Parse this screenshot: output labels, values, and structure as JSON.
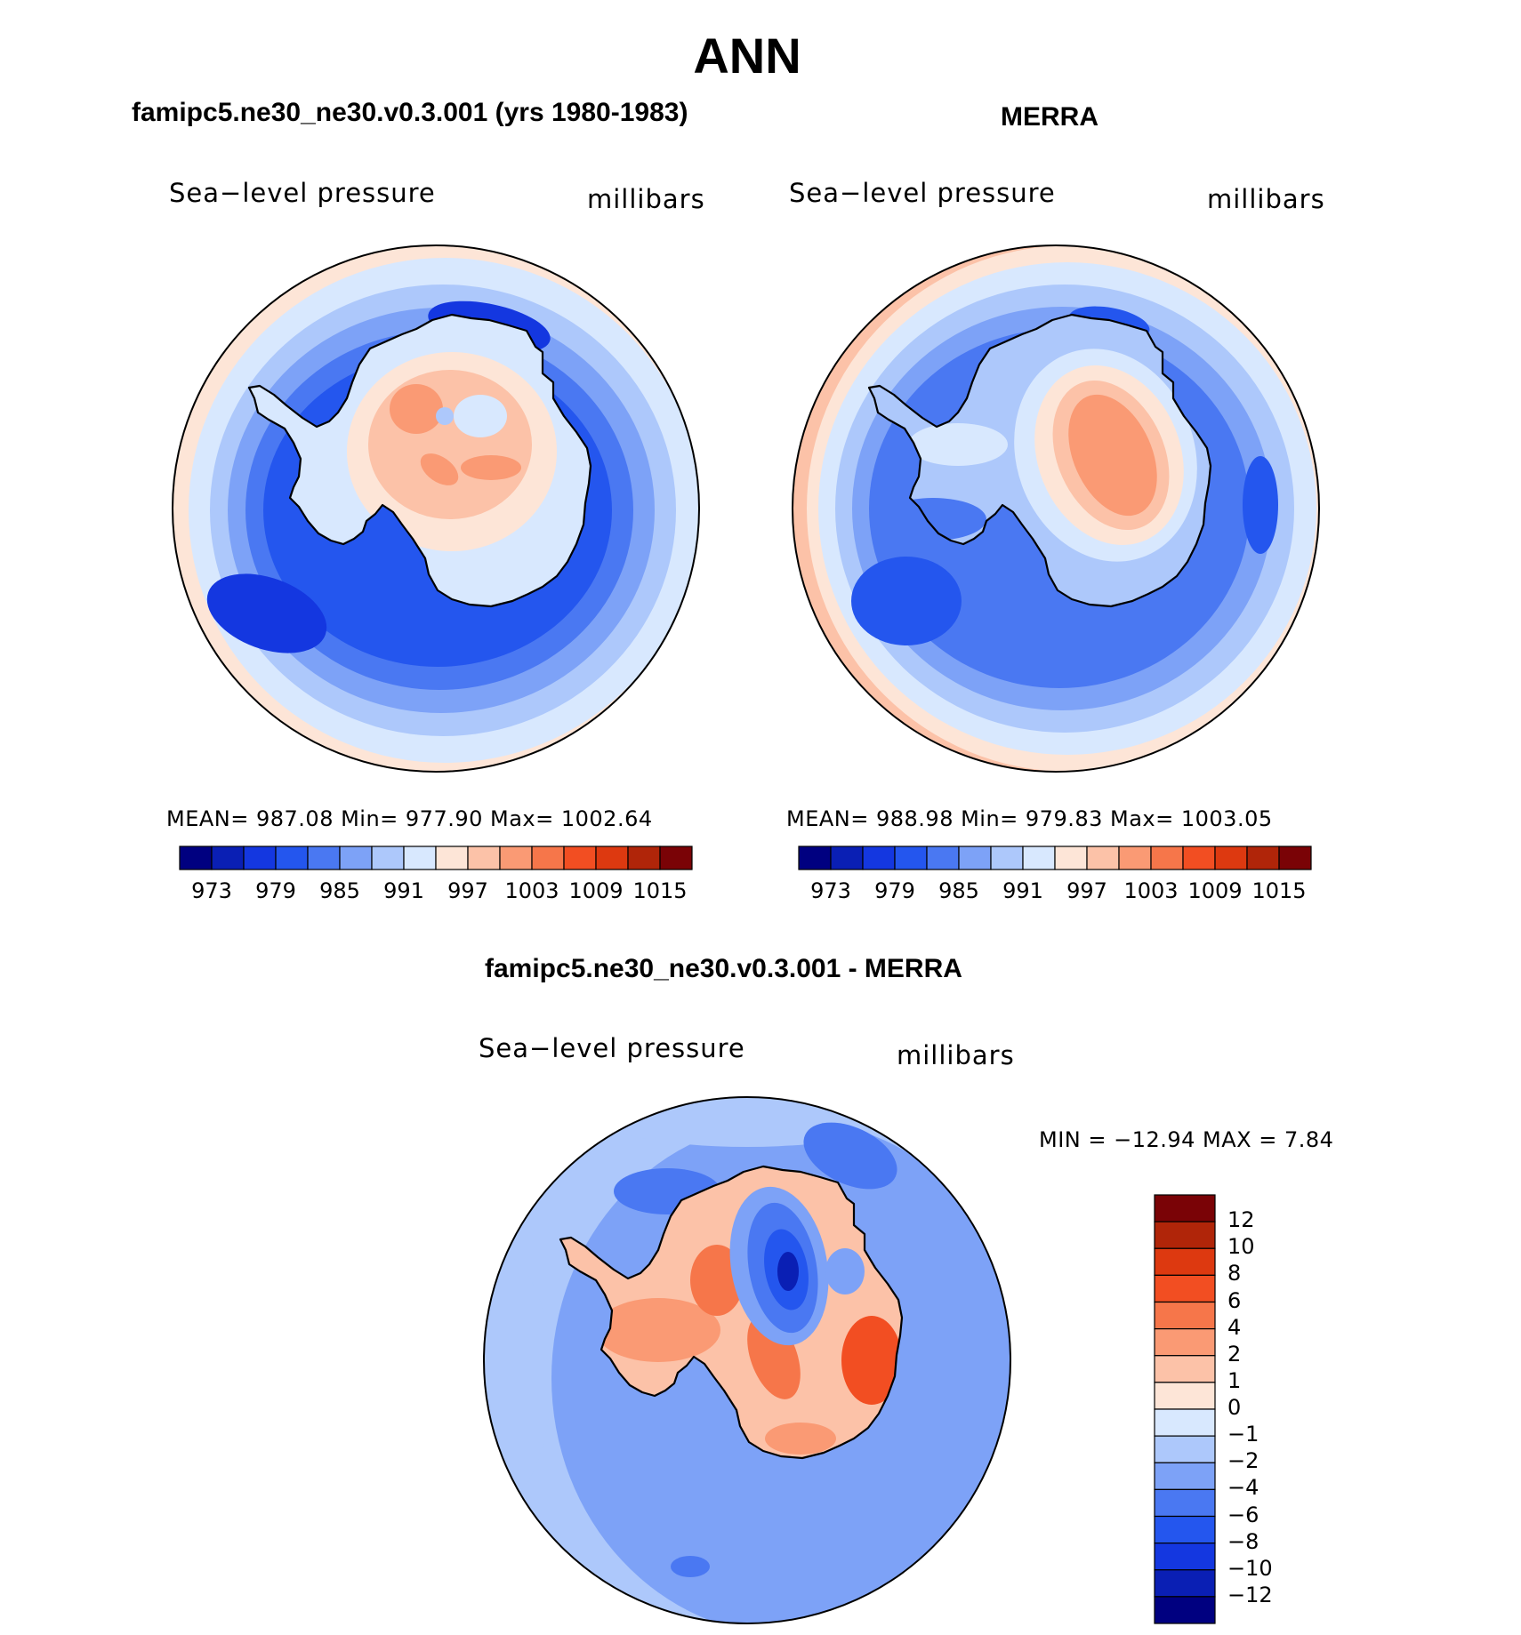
{
  "figure": {
    "title": "ANN",
    "variable": "Sea−level pressure",
    "units": "millibars"
  },
  "colors": {
    "ocean": "#d7e7ff",
    "coast": "#000000",
    "abs_scale": [
      "#000080",
      "#0a1fb4",
      "#1437e0",
      "#2456ee",
      "#4a78f2",
      "#7da2f7",
      "#adc8fb",
      "#d8e8fe",
      "#fde5d7",
      "#fcc2a8",
      "#fa9a74",
      "#f6764a",
      "#f24e22",
      "#dd3910",
      "#b02509",
      "#7a0306"
    ],
    "diff_scale": [
      "#000080",
      "#0a1fb4",
      "#1437e0",
      "#2456ee",
      "#4a78f2",
      "#7da2f7",
      "#adc8fb",
      "#d8e8fe",
      "#fde5d7",
      "#fcc2a8",
      "#fa9a74",
      "#f6764a",
      "#f24e22",
      "#dd3910",
      "#b02509",
      "#7a0306"
    ]
  },
  "chart_data": [
    {
      "type": "contour_map",
      "panel": "model",
      "title": "famipc5.ne30_ne30.v0.3.001 (yrs 1980-1983)",
      "subtitle_left": "Sea−level pressure",
      "subtitle_right": "millibars",
      "stats_text": "MEAN=  987.08   Min=  977.90   Max=  1002.64",
      "stats": {
        "mean": 987.08,
        "min": 977.9,
        "max": 1002.64
      },
      "colorbar_labels": [
        "973",
        "979",
        "985",
        "991",
        "997",
        "1003",
        "1009",
        "1015"
      ],
      "levels": [
        970,
        973,
        976,
        979,
        982,
        985,
        988,
        991,
        994,
        997,
        1000,
        1003,
        1006,
        1009,
        1012,
        1015
      ]
    },
    {
      "type": "contour_map",
      "panel": "reference",
      "title": "MERRA",
      "subtitle_left": "Sea−level pressure",
      "subtitle_right": "millibars",
      "stats_text": "MEAN=  988.98   Min=  979.83   Max=  1003.05",
      "stats": {
        "mean": 988.98,
        "min": 979.83,
        "max": 1003.05
      },
      "colorbar_labels": [
        "973",
        "979",
        "985",
        "991",
        "997",
        "1003",
        "1009",
        "1015"
      ],
      "levels": [
        970,
        973,
        976,
        979,
        982,
        985,
        988,
        991,
        994,
        997,
        1000,
        1003,
        1006,
        1009,
        1012,
        1015
      ]
    },
    {
      "type": "contour_map",
      "panel": "difference",
      "title": "famipc5.ne30_ne30.v0.3.001 - MERRA",
      "subtitle_left": "Sea−level pressure",
      "subtitle_right": "millibars",
      "stats_text": "MIN  =  −12.94  MAX  =      7.84",
      "stats": {
        "min": -12.94,
        "max": 7.84
      },
      "colorbar_labels": [
        "12",
        "10",
        "8",
        "6",
        "4",
        "2",
        "1",
        "0",
        "−1",
        "−2",
        "−4",
        "−6",
        "−8",
        "−10",
        "−12"
      ],
      "levels": [
        12,
        10,
        8,
        6,
        4,
        2,
        1,
        0,
        -1,
        -2,
        -4,
        -6,
        -8,
        -10,
        -12
      ]
    }
  ]
}
